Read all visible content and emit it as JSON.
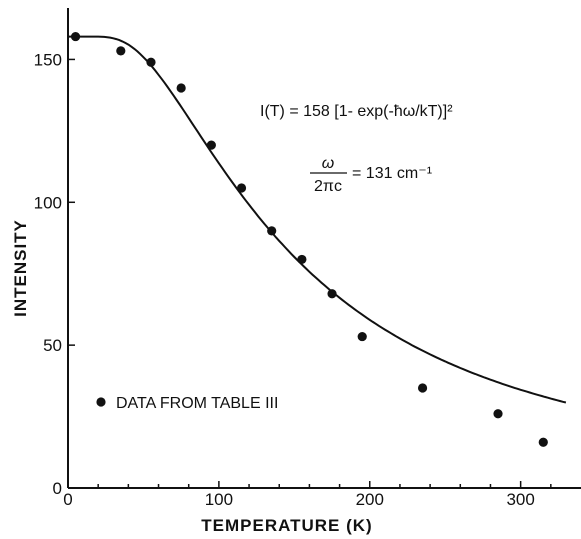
{
  "chart_data": {
    "type": "scatter",
    "xlabel": "TEMPERATURE (K)",
    "ylabel": "INTENSITY",
    "xlim": [
      0,
      340
    ],
    "ylim": [
      0,
      168
    ],
    "x_ticks": [
      0,
      100,
      200,
      300
    ],
    "y_ticks": [
      0,
      50,
      100,
      150
    ],
    "x_tick_labels": [
      "0",
      "100",
      "200",
      "300"
    ],
    "y_tick_labels": [
      "0",
      "50",
      "100",
      "150"
    ],
    "grid": false,
    "series": [
      {
        "name": "DATA FROM TABLE III",
        "x": [
          5,
          35,
          55,
          75,
          95,
          115,
          135,
          155,
          175,
          195,
          235,
          285,
          315
        ],
        "y": [
          158,
          153,
          149,
          140,
          120,
          105,
          90,
          80,
          68,
          53,
          35,
          26,
          16
        ]
      }
    ],
    "fit": {
      "amplitude": 158,
      "omega_cm": 131,
      "x_range": [
        0,
        330
      ]
    },
    "annotations": {
      "equation": "I(T) = 158 [1- exp(-ħω/kT)]²",
      "omega_numerator": "ω",
      "omega_denominator": "2πc",
      "omega_value": "= 131 cm⁻¹"
    },
    "legend": {
      "marker": "●",
      "label": "DATA FROM TABLE III",
      "position": "bottom-left"
    }
  }
}
